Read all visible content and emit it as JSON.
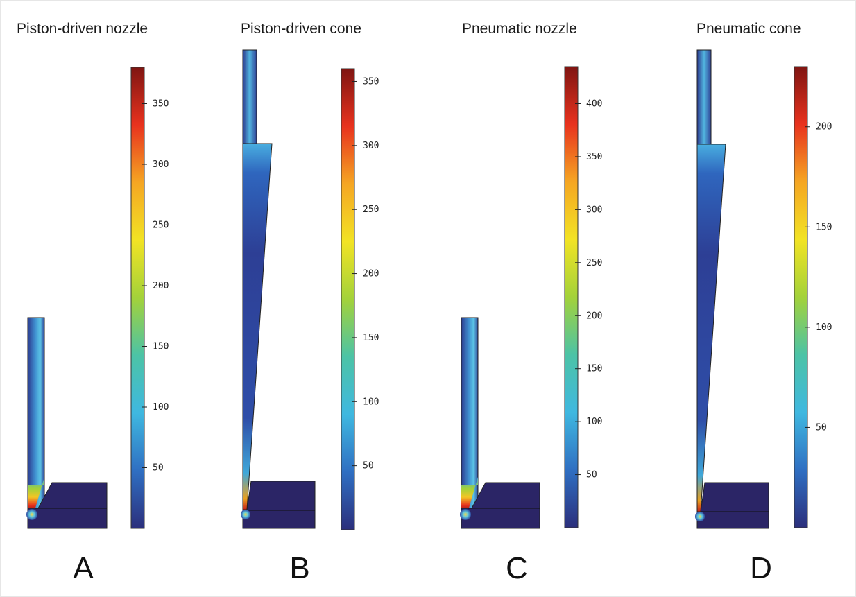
{
  "colors": {
    "melt_low": "#2e3a8c",
    "melt_deep": "#2b2566",
    "solid_block": "#2b2566"
  },
  "colormap": [
    "#2c2f7c",
    "#2f6fc2",
    "#3fb8e0",
    "#4cc3a6",
    "#a3d23a",
    "#f2e324",
    "#f5a623",
    "#e8321e",
    "#7f1512"
  ],
  "panels": [
    {
      "id": "A",
      "title": "Piston-driven nozzle",
      "letter": "A",
      "colorbar": {
        "min": 0,
        "max": 380,
        "ticks": [
          50,
          100,
          150,
          200,
          250,
          300,
          350
        ]
      }
    },
    {
      "id": "B",
      "title": "Piston-driven cone",
      "letter": "B",
      "colorbar": {
        "min": 0,
        "max": 360,
        "ticks": [
          50,
          100,
          150,
          200,
          250,
          300,
          350
        ]
      }
    },
    {
      "id": "C",
      "title": "Pneumatic nozzle",
      "letter": "C",
      "colorbar": {
        "min": 0,
        "max": 435,
        "ticks": [
          50,
          100,
          150,
          200,
          250,
          300,
          350,
          400
        ]
      }
    },
    {
      "id": "D",
      "title": "Pneumatic cone",
      "letter": "D",
      "colorbar": {
        "min": 0,
        "max": 230,
        "ticks": [
          50,
          100,
          150,
          200
        ]
      }
    }
  ]
}
